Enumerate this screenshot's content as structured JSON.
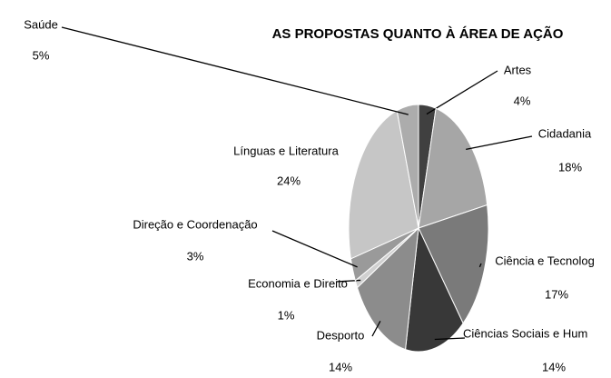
{
  "chart_data": {
    "type": "pie",
    "title": "AS PROPOSTAS QUANTO À ÁREA DE AÇÃO",
    "categories": [
      "Artes",
      "Cidadania",
      "Ciência e Tecnolog",
      "Ciências Sociais e Hum",
      "Desporto",
      "Economia e Direito",
      "Direção e Coordenação",
      "Línguas e Literatura",
      "Saúde"
    ],
    "values": [
      4,
      18,
      17,
      14,
      14,
      1,
      3,
      24,
      5
    ],
    "value_labels": [
      "4%",
      "18%",
      "17%",
      "14%",
      "14%",
      "1%",
      "3%",
      "24%",
      "5%"
    ],
    "colors": [
      "#404040",
      "#a6a6a6",
      "#7a7a7a",
      "#383838",
      "#8c8c8c",
      "#d0d0d0",
      "#9a9a9a",
      "#c6c6c6",
      "#acacac"
    ]
  }
}
